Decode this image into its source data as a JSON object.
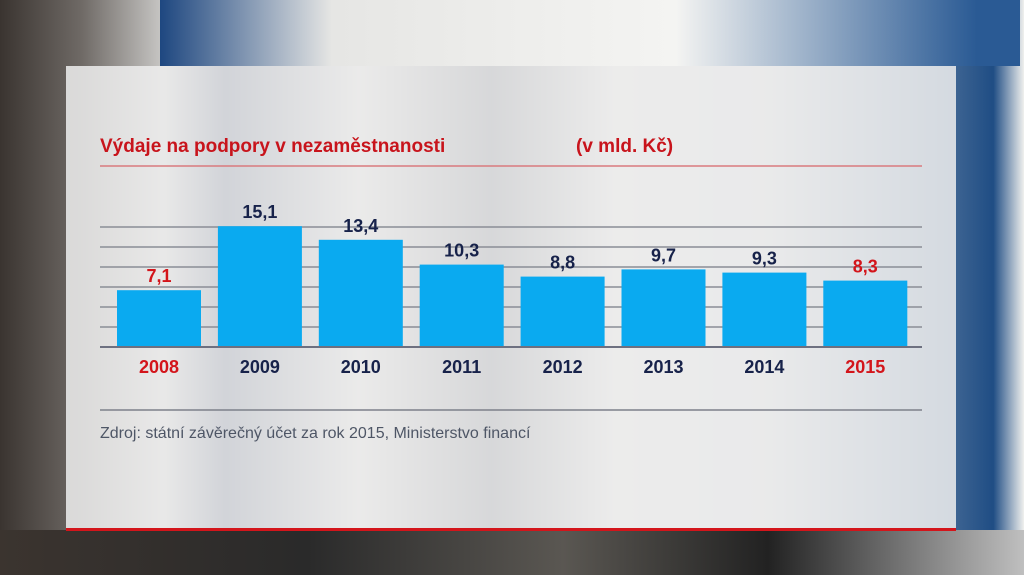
{
  "chart_data": {
    "type": "bar",
    "title": "Výdaje na podpory v nezaměstnanosti",
    "unit": "(v mld. Kč)",
    "categories": [
      "2008",
      "2009",
      "2010",
      "2011",
      "2012",
      "2013",
      "2014",
      "2015"
    ],
    "values": [
      7.1,
      15.1,
      13.4,
      10.3,
      8.8,
      9.7,
      9.3,
      8.3
    ],
    "value_labels": [
      "7,1",
      "15,1",
      "13,4",
      "10,3",
      "8,8",
      "9,7",
      "9,3",
      "8,3"
    ],
    "highlighted_categories": [
      "2008",
      "2015"
    ],
    "ylim": [
      0,
      15
    ],
    "grid": true,
    "source": "Zdroj: státní závěrečný účet za rok 2015, Ministerstvo financí",
    "colors": {
      "bar": "#0aaaf0",
      "highlight_text": "#d3151b",
      "text": "#17224a",
      "grid": "#8a8d96",
      "title": "#c8141c"
    }
  }
}
